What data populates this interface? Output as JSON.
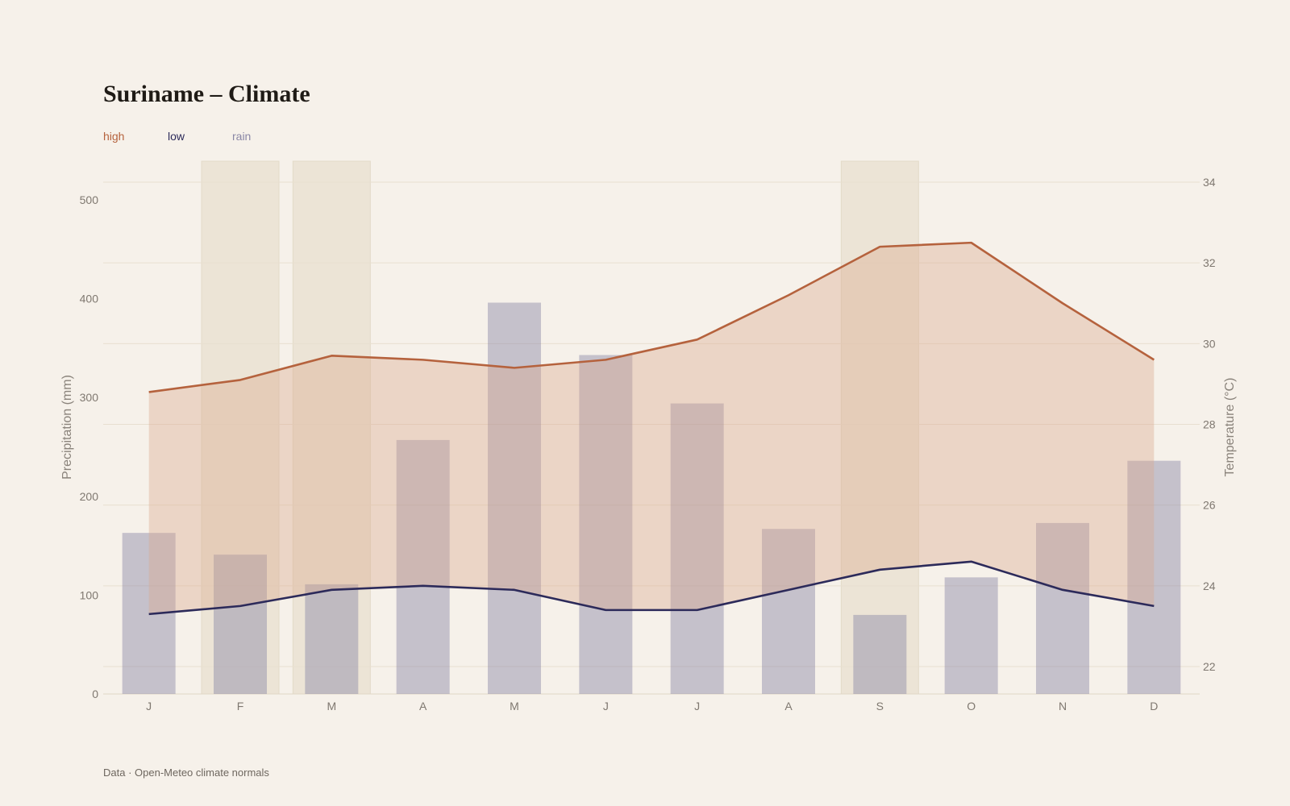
{
  "title": "Suriname – Climate",
  "source": "Data · Open-Meteo climate normals",
  "legend": [
    {
      "label": "high",
      "color": "#b5623d"
    },
    {
      "label": "low",
      "color": "#2c2a5a"
    },
    {
      "label": "rain",
      "color": "#8a87a6"
    }
  ],
  "chart_data": {
    "type": "bar+line",
    "categories": [
      "J",
      "F",
      "M",
      "A",
      "M",
      "J",
      "J",
      "A",
      "S",
      "O",
      "N",
      "D"
    ],
    "series": [
      {
        "name": "rain",
        "type": "bar",
        "axis": "left",
        "color": "#8a87a6",
        "values": [
          163,
          141,
          111,
          257,
          396,
          343,
          294,
          167,
          80,
          118,
          173,
          236
        ]
      },
      {
        "name": "high",
        "type": "line",
        "axis": "right",
        "color": "#b5623d",
        "values": [
          28.8,
          29.1,
          29.7,
          29.6,
          29.4,
          29.6,
          30.1,
          31.2,
          32.4,
          32.5,
          31.0,
          29.6
        ]
      },
      {
        "name": "low",
        "type": "line",
        "axis": "right",
        "color": "#2c2a5a",
        "values": [
          23.3,
          23.5,
          23.9,
          24.0,
          23.9,
          23.4,
          23.4,
          23.9,
          24.4,
          24.6,
          23.9,
          23.5
        ]
      }
    ],
    "highlighted_months": [
      1,
      2,
      8
    ],
    "y_left": {
      "label": "Precipitation (mm)",
      "ticks": [
        0,
        100,
        200,
        300,
        400,
        500
      ],
      "lim": [
        0,
        500
      ]
    },
    "y_right": {
      "label": "Temperature (°C)",
      "ticks": [
        22,
        24,
        26,
        28,
        30,
        32,
        34
      ],
      "lim": [
        21.3,
        34.2
      ]
    },
    "grid": true,
    "legend_position": "top-left"
  }
}
